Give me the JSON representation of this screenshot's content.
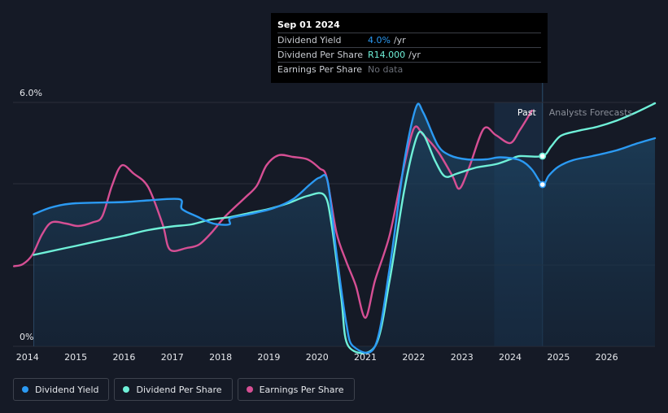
{
  "tooltip": {
    "date": "Sep 01 2024",
    "rows": [
      {
        "name": "Dividend Yield",
        "value": "4.0%",
        "unit": "/yr",
        "color": "#2b9af3"
      },
      {
        "name": "Dividend Per Share",
        "value": "R14.000",
        "unit": "/yr",
        "color": "#6ff0d8"
      },
      {
        "name": "Earnings Per Share",
        "value": "No data",
        "unit": "",
        "color": "#6b6f78"
      }
    ]
  },
  "legend": [
    {
      "label": "Dividend Yield",
      "color": "#2b9af3"
    },
    {
      "label": "Dividend Per Share",
      "color": "#6ff0d8"
    },
    {
      "label": "Earnings Per Share",
      "color": "#d64f94"
    }
  ],
  "chart_data": {
    "type": "line",
    "title": "",
    "xlabel": "",
    "ylabel": "",
    "y_tick_labels": [
      "6.0%",
      "0%"
    ],
    "ylim": [
      0,
      6
    ],
    "xlim": [
      2013.7,
      2027.0
    ],
    "x_tick_labels": [
      "2014",
      "2015",
      "2016",
      "2017",
      "2018",
      "2019",
      "2020",
      "2021",
      "2022",
      "2023",
      "2024",
      "2025",
      "2026"
    ],
    "regions": {
      "past_label": "Past",
      "forecast_label": "Analysts Forecasts",
      "past_region_start": 2023.67,
      "forecast_start": 2024.67
    },
    "series": [
      {
        "name": "Dividend Yield",
        "color": "#2b9af3",
        "unit": "%",
        "points": [
          [
            2014.13,
            3.25
          ],
          [
            2014.5,
            3.42
          ],
          [
            2015.0,
            3.52
          ],
          [
            2016.0,
            3.55
          ],
          [
            2016.5,
            3.59
          ],
          [
            2017.15,
            3.62
          ],
          [
            2017.2,
            3.38
          ],
          [
            2017.5,
            3.2
          ],
          [
            2017.85,
            3.02
          ],
          [
            2018.18,
            3.0
          ],
          [
            2018.2,
            3.15
          ],
          [
            2018.6,
            3.25
          ],
          [
            2019.1,
            3.4
          ],
          [
            2019.5,
            3.62
          ],
          [
            2019.85,
            3.98
          ],
          [
            2020.05,
            4.15
          ],
          [
            2020.22,
            4.05
          ],
          [
            2020.4,
            2.3
          ],
          [
            2020.6,
            0.6
          ],
          [
            2020.75,
            0.0
          ],
          [
            2021.2,
            0.0
          ],
          [
            2021.5,
            1.9
          ],
          [
            2021.8,
            4.5
          ],
          [
            2022.05,
            5.88
          ],
          [
            2022.2,
            5.75
          ],
          [
            2022.5,
            4.95
          ],
          [
            2022.75,
            4.7
          ],
          [
            2023.1,
            4.6
          ],
          [
            2023.5,
            4.6
          ],
          [
            2023.8,
            4.65
          ],
          [
            2024.2,
            4.58
          ],
          [
            2024.45,
            4.35
          ],
          [
            2024.67,
            3.98
          ],
          [
            2024.8,
            4.2
          ],
          [
            2025.0,
            4.42
          ],
          [
            2025.3,
            4.58
          ],
          [
            2025.7,
            4.68
          ],
          [
            2026.2,
            4.82
          ],
          [
            2026.6,
            4.98
          ],
          [
            2027.0,
            5.12
          ]
        ]
      },
      {
        "name": "Dividend Per Share",
        "color": "#6ff0d8",
        "unit": "R",
        "points": [
          [
            2014.13,
            2.25
          ],
          [
            2014.6,
            2.37
          ],
          [
            2015.0,
            2.47
          ],
          [
            2015.5,
            2.6
          ],
          [
            2016.0,
            2.72
          ],
          [
            2016.5,
            2.86
          ],
          [
            2017.0,
            2.95
          ],
          [
            2017.4,
            3.0
          ],
          [
            2017.8,
            3.12
          ],
          [
            2018.2,
            3.18
          ],
          [
            2018.6,
            3.28
          ],
          [
            2019.0,
            3.38
          ],
          [
            2019.4,
            3.52
          ],
          [
            2019.8,
            3.7
          ],
          [
            2020.15,
            3.72
          ],
          [
            2020.3,
            3.0
          ],
          [
            2020.5,
            1.2
          ],
          [
            2020.65,
            0.0
          ],
          [
            2021.2,
            0.0
          ],
          [
            2021.5,
            1.6
          ],
          [
            2021.8,
            3.8
          ],
          [
            2022.05,
            5.1
          ],
          [
            2022.2,
            5.22
          ],
          [
            2022.45,
            4.55
          ],
          [
            2022.65,
            4.18
          ],
          [
            2022.9,
            4.25
          ],
          [
            2023.3,
            4.4
          ],
          [
            2023.7,
            4.48
          ],
          [
            2024.0,
            4.6
          ],
          [
            2024.2,
            4.68
          ],
          [
            2024.67,
            4.68
          ],
          [
            2024.85,
            4.92
          ],
          [
            2025.05,
            5.18
          ],
          [
            2025.4,
            5.3
          ],
          [
            2025.8,
            5.4
          ],
          [
            2026.2,
            5.55
          ],
          [
            2026.6,
            5.75
          ],
          [
            2027.0,
            5.98
          ]
        ]
      },
      {
        "name": "Earnings Per Share",
        "color": "#d64f94",
        "unit": "R",
        "points": [
          [
            2013.72,
            1.97
          ],
          [
            2013.9,
            2.02
          ],
          [
            2014.1,
            2.25
          ],
          [
            2014.3,
            2.75
          ],
          [
            2014.5,
            3.05
          ],
          [
            2014.8,
            3.02
          ],
          [
            2015.05,
            2.96
          ],
          [
            2015.35,
            3.05
          ],
          [
            2015.55,
            3.2
          ],
          [
            2015.75,
            3.95
          ],
          [
            2015.95,
            4.45
          ],
          [
            2016.2,
            4.25
          ],
          [
            2016.5,
            3.92
          ],
          [
            2016.8,
            3.0
          ],
          [
            2016.95,
            2.38
          ],
          [
            2017.3,
            2.42
          ],
          [
            2017.55,
            2.5
          ],
          [
            2017.8,
            2.78
          ],
          [
            2018.1,
            3.2
          ],
          [
            2018.5,
            3.65
          ],
          [
            2018.75,
            3.95
          ],
          [
            2018.95,
            4.45
          ],
          [
            2019.2,
            4.7
          ],
          [
            2019.5,
            4.66
          ],
          [
            2019.8,
            4.6
          ],
          [
            2020.05,
            4.38
          ],
          [
            2020.2,
            4.15
          ],
          [
            2020.4,
            2.8
          ],
          [
            2020.6,
            2.1
          ],
          [
            2020.8,
            1.5
          ],
          [
            2021.0,
            0.7
          ],
          [
            2021.2,
            1.62
          ],
          [
            2021.5,
            2.72
          ],
          [
            2021.75,
            4.15
          ],
          [
            2022.0,
            5.35
          ],
          [
            2022.2,
            5.2
          ],
          [
            2022.5,
            4.8
          ],
          [
            2022.8,
            4.2
          ],
          [
            2022.95,
            3.88
          ],
          [
            2023.15,
            4.4
          ],
          [
            2023.45,
            5.35
          ],
          [
            2023.7,
            5.2
          ],
          [
            2024.0,
            5.0
          ],
          [
            2024.2,
            5.32
          ],
          [
            2024.45,
            5.8
          ]
        ]
      }
    ],
    "markers": [
      {
        "series": "Dividend Yield",
        "x": 2024.67,
        "y": 3.98
      },
      {
        "series": "Dividend Per Share",
        "x": 2024.67,
        "y": 4.68
      }
    ]
  }
}
